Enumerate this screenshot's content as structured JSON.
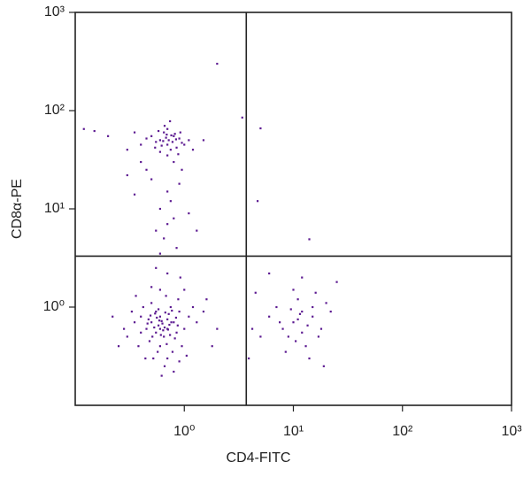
{
  "chart_data": {
    "type": "scatter",
    "x_label": "CD4-FITC",
    "y_label": "CD8α-PE",
    "log_x": true,
    "log_y": true,
    "color": "#5c1a91",
    "xlim": [
      0.1,
      1000
    ],
    "ylim": [
      0.1,
      1000
    ],
    "xticks": [
      {
        "value": 1,
        "label": "10⁰"
      },
      {
        "value": 10,
        "label": "10¹"
      },
      {
        "value": 100,
        "label": "10²"
      },
      {
        "value": 1000,
        "label": "10³"
      }
    ],
    "yticks": [
      {
        "value": 1,
        "label": "10⁰"
      },
      {
        "value": 10,
        "label": "10¹"
      },
      {
        "value": 100,
        "label": "10²"
      },
      {
        "value": 1000,
        "label": "10³"
      }
    ],
    "quadrant_gates": {
      "x": 3.7,
      "y": 3.3
    },
    "x": [
      0.5,
      0.6,
      0.7,
      0.55,
      0.65,
      0.45,
      0.8,
      0.75,
      0.6,
      0.5,
      0.4,
      0.9,
      0.7,
      0.55,
      0.62,
      0.48,
      0.85,
      0.68,
      0.58,
      0.72,
      0.35,
      0.42,
      1.0,
      1.1,
      0.95,
      0.52,
      0.66,
      0.78,
      0.6,
      0.5,
      0.3,
      0.38,
      0.44,
      0.88,
      0.82,
      0.56,
      0.64,
      0.7,
      0.46,
      0.74,
      1.2,
      1.3,
      1.5,
      0.33,
      0.28,
      0.9,
      0.8,
      0.62,
      1.05,
      0.58,
      0.67,
      0.53,
      0.61,
      0.73,
      0.49,
      0.77,
      0.69,
      0.57,
      0.84,
      0.4,
      0.25,
      0.22,
      0.36,
      1.0,
      0.92,
      0.7,
      0.55,
      1.6,
      2.0,
      1.8,
      0.63,
      0.59,
      0.71,
      0.51,
      0.66,
      0.54,
      0.76,
      0.47,
      0.87,
      0.6,
      0.6,
      0.7,
      0.8,
      0.65,
      0.75,
      0.55,
      0.9,
      0.85,
      0.7,
      0.6,
      0.5,
      0.95,
      0.72,
      0.68,
      0.78,
      0.62,
      0.82,
      1.0,
      1.1,
      0.45,
      0.58,
      0.88,
      0.66,
      0.74,
      0.54,
      0.92,
      0.7,
      0.8,
      1.2,
      0.4,
      0.3,
      0.2,
      0.15,
      0.12,
      0.35,
      1.5,
      0.76,
      0.64,
      0.69,
      0.84,
      0.5,
      0.7,
      0.6,
      0.8,
      0.45,
      0.9,
      0.55,
      0.65,
      0.75,
      0.4,
      1.1,
      0.35,
      0.85,
      0.6,
      1.3,
      0.3,
      0.95,
      0.7,
      2.0,
      3.4,
      5.0,
      4.7,
      14,
      10,
      12,
      8,
      15,
      11,
      9,
      13,
      7,
      18,
      20,
      10,
      14,
      6,
      16,
      12,
      11,
      9.5,
      13.5,
      8.5,
      22,
      25,
      5,
      6,
      19,
      12,
      10.5,
      15,
      11.5,
      7.5,
      17,
      4.2,
      4.5,
      3.9
    ],
    "values": [
      0.7,
      0.8,
      0.6,
      0.9,
      0.5,
      0.6,
      0.7,
      1.0,
      0.4,
      1.1,
      0.8,
      0.9,
      0.3,
      0.55,
      0.72,
      0.45,
      0.55,
      1.3,
      0.65,
      0.85,
      0.7,
      1.0,
      0.6,
      0.8,
      0.4,
      0.3,
      0.25,
      0.35,
      1.5,
      1.6,
      0.5,
      0.4,
      0.3,
      1.2,
      0.48,
      0.78,
      0.58,
      0.75,
      0.68,
      0.52,
      1.0,
      0.7,
      0.9,
      0.9,
      0.6,
      0.28,
      0.22,
      0.2,
      0.32,
      0.95,
      0.88,
      0.62,
      0.52,
      0.66,
      0.82,
      0.92,
      0.42,
      0.35,
      0.78,
      0.55,
      0.4,
      0.8,
      1.3,
      1.5,
      2.0,
      2.2,
      2.5,
      1.2,
      0.6,
      0.4,
      0.68,
      0.73,
      0.59,
      0.5,
      0.62,
      0.86,
      0.7,
      0.75,
      0.65,
      0.6,
      50,
      45,
      55,
      60,
      40,
      48,
      52,
      42,
      65,
      38,
      55,
      47,
      50,
      53,
      48,
      44,
      58,
      45,
      50,
      52,
      62,
      36,
      70,
      78,
      42,
      60,
      35,
      30,
      40,
      45,
      40,
      55,
      62,
      65,
      60,
      50,
      56,
      49,
      57,
      51,
      20,
      15,
      10,
      8,
      25,
      18,
      6,
      5,
      12,
      30,
      9,
      14,
      4,
      3.5,
      6,
      22,
      25,
      7,
      300,
      85,
      66,
      12,
      4.9,
      0.7,
      0.9,
      0.6,
      0.8,
      1.2,
      0.5,
      0.4,
      1.0,
      0.6,
      1.1,
      1.5,
      0.3,
      0.8,
      1.4,
      0.55,
      0.75,
      0.95,
      0.65,
      0.35,
      0.9,
      1.8,
      0.5,
      2.2,
      0.25,
      2.0,
      0.45,
      1.0,
      0.85,
      0.7,
      0.5,
      0.6,
      1.4,
      0.3
    ]
  }
}
